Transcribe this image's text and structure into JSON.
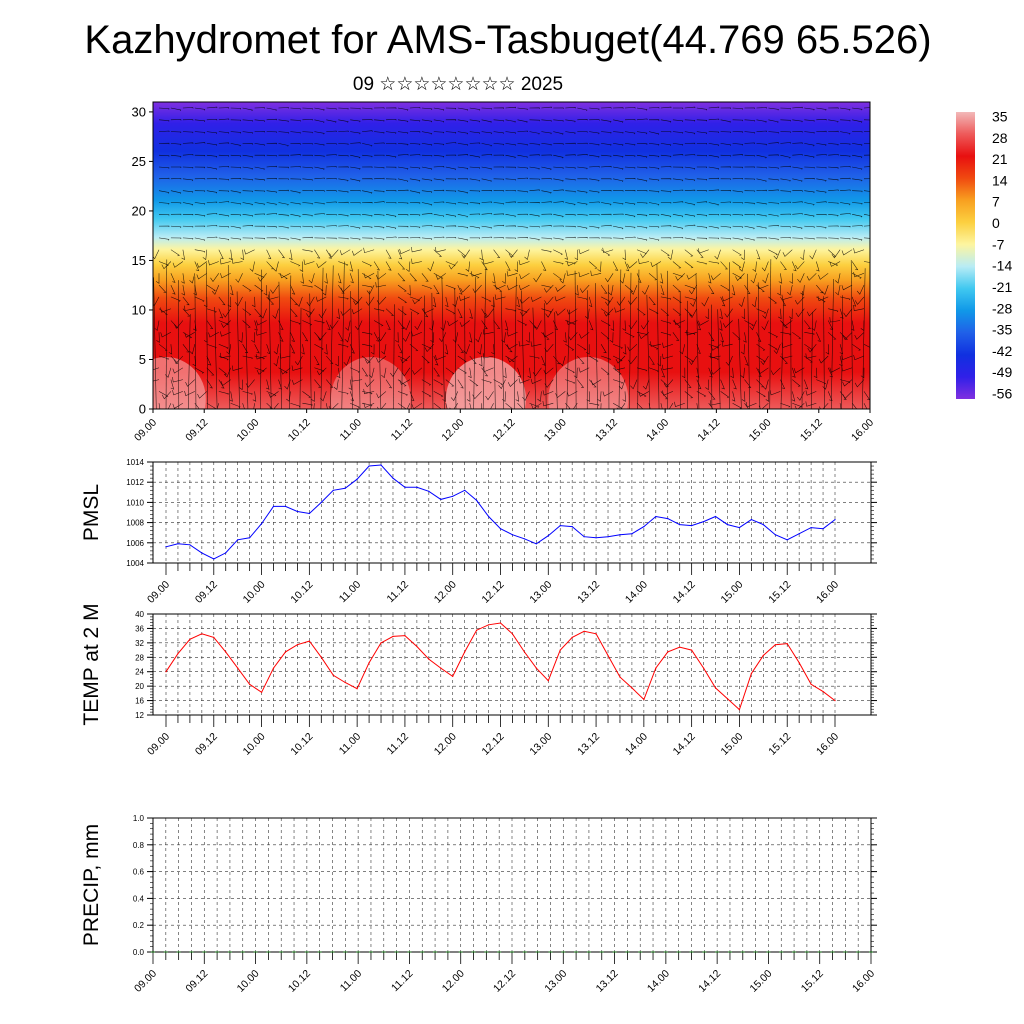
{
  "header": {
    "title": "Kazhydromet for AMS-Tasbuget(44.769 65.526)",
    "subtitle": "09 ☆☆☆☆☆☆☆☆ 2025"
  },
  "chart_data": [
    {
      "type": "heatmap",
      "title": "",
      "xlabel": "",
      "ylabel": "",
      "x_tick_labels": [
        "09.00",
        "09.12",
        "10.00",
        "10.12",
        "11.00",
        "11.12",
        "12.00",
        "12.12",
        "13.00",
        "13.12",
        "14.00",
        "14.12",
        "15.00",
        "15.12",
        "16.00"
      ],
      "y_ticks": [
        0,
        5,
        10,
        15,
        20,
        25,
        30
      ],
      "ylim": [
        0,
        31
      ],
      "colorbar_labels": [
        "35",
        "28",
        "21",
        "14",
        "7",
        "0",
        "-7",
        "-14",
        "-21",
        "-28",
        "-35",
        "-42",
        "-49",
        "-56"
      ],
      "colorbar_colors": [
        "#f2b9b9",
        "#ee5a5a",
        "#e81010",
        "#f04a10",
        "#f8a020",
        "#fcd040",
        "#fdf5a0",
        "#b8ecf5",
        "#40c8f0",
        "#1098e8",
        "#2060e8",
        "#1030e0",
        "#3020e8",
        "#8030e0"
      ],
      "wind_barbs": true
    },
    {
      "type": "line",
      "ylabel": "PMSL",
      "ylim": [
        1004,
        1014
      ],
      "y_ticks": [
        1004,
        1006,
        1008,
        1010,
        1012,
        1014
      ],
      "y_tick_labels": [
        "1004",
        "1006",
        "1008",
        "1010",
        "1012",
        "1014"
      ],
      "x_tick_labels": [
        "09.00",
        "09.12",
        "10.00",
        "10.12",
        "11.00",
        "11.12",
        "12.00",
        "12.12",
        "13.00",
        "13.12",
        "14.00",
        "14.12",
        "15.00",
        "15.12",
        "16.00"
      ],
      "series": [
        {
          "color": "#0000ff",
          "x_hours": [
            0,
            3,
            6,
            9,
            12,
            15,
            18,
            21,
            24,
            27,
            30,
            33,
            36,
            39,
            42,
            45,
            48,
            51,
            54,
            57,
            60,
            63,
            66,
            69,
            72,
            75,
            78,
            81,
            84,
            87,
            90,
            93,
            96,
            99,
            102,
            105,
            108,
            111,
            114,
            117,
            120,
            123,
            126,
            129,
            132,
            135,
            138,
            141,
            144,
            147,
            150,
            153,
            156,
            159,
            162,
            165,
            168
          ],
          "values": [
            1005.6,
            1005.9,
            1005.8,
            1005.0,
            1004.4,
            1005.0,
            1006.3,
            1006.5,
            1007.9,
            1009.6,
            1009.6,
            1009.1,
            1008.9,
            1010.0,
            1011.2,
            1011.4,
            1012.3,
            1013.6,
            1013.7,
            1012.4,
            1011.5,
            1011.5,
            1011.1,
            1010.3,
            1010.6,
            1011.2,
            1010.2,
            1008.6,
            1007.4,
            1006.8,
            1006.4,
            1005.9,
            1006.7,
            1007.7,
            1007.6,
            1006.6,
            1006.5,
            1006.6,
            1006.8,
            1006.9,
            1007.6,
            1008.6,
            1008.4,
            1007.8,
            1007.7,
            1008.1,
            1008.6,
            1007.8,
            1007.5,
            1008.3,
            1007.8,
            1006.8,
            1006.3,
            1006.9,
            1007.5,
            1007.4,
            1008.3
          ]
        }
      ]
    },
    {
      "type": "line",
      "ylabel": "TEMP at 2 M",
      "ylim": [
        12,
        40
      ],
      "y_ticks": [
        12,
        16,
        20,
        24,
        28,
        32,
        36,
        40
      ],
      "y_tick_labels": [
        "12",
        "16",
        "20",
        "24",
        "28",
        "32",
        "36",
        "40"
      ],
      "x_tick_labels": [
        "09.00",
        "09.12",
        "10.00",
        "10.12",
        "11.00",
        "11.12",
        "12.00",
        "12.12",
        "13.00",
        "13.12",
        "14.00",
        "14.12",
        "15.00",
        "15.12",
        "16.00"
      ],
      "series": [
        {
          "color": "#ff0000",
          "x_hours": [
            0,
            3,
            6,
            9,
            12,
            15,
            18,
            21,
            24,
            27,
            30,
            33,
            36,
            39,
            42,
            45,
            48,
            51,
            54,
            57,
            60,
            63,
            66,
            69,
            72,
            75,
            78,
            81,
            84,
            87,
            90,
            93,
            96,
            99,
            102,
            105,
            108,
            111,
            114,
            117,
            120,
            123,
            126,
            129,
            132,
            135,
            138,
            141,
            144,
            147,
            150,
            153,
            156,
            159,
            162,
            165,
            168
          ],
          "values": [
            24.0,
            29.0,
            33.0,
            34.5,
            33.5,
            29.5,
            25.0,
            20.5,
            18.3,
            25.0,
            29.5,
            31.5,
            32.5,
            28.0,
            23.0,
            21.0,
            19.3,
            26.5,
            32.0,
            33.8,
            34.0,
            31.0,
            27.5,
            25.0,
            22.7,
            29.5,
            35.5,
            37.0,
            37.5,
            34.5,
            29.5,
            25.0,
            21.5,
            30.0,
            33.5,
            35.2,
            34.5,
            28.5,
            22.5,
            19.5,
            16.3,
            25.0,
            29.5,
            30.8,
            30.0,
            25.0,
            19.5,
            16.5,
            13.5,
            23.5,
            28.5,
            31.5,
            31.8,
            26.5,
            20.5,
            18.5,
            16.0
          ]
        }
      ]
    },
    {
      "type": "bar",
      "ylabel": "PRECIP, mm",
      "ylim": [
        0,
        1
      ],
      "y_ticks": [
        0,
        0.2,
        0.4,
        0.6,
        0.8,
        1.0
      ],
      "y_tick_labels": [
        "0.0",
        "0.2",
        "0.4",
        "0.6",
        "0.8",
        "1.0"
      ],
      "x_tick_labels": [
        "09.00",
        "09.12",
        "10.00",
        "10.12",
        "11.00",
        "11.12",
        "12.00",
        "12.12",
        "13.00",
        "13.12",
        "14.00",
        "14.12",
        "15.00",
        "15.12",
        "16.00"
      ],
      "series": [
        {
          "color": "#006400",
          "values": [
            0,
            0,
            0,
            0,
            0,
            0,
            0,
            0,
            0,
            0,
            0,
            0,
            0,
            0,
            0,
            0,
            0,
            0,
            0,
            0,
            0,
            0,
            0,
            0,
            0,
            0,
            0,
            0,
            0,
            0,
            0,
            0,
            0,
            0,
            0,
            0,
            0,
            0,
            0,
            0,
            0,
            0,
            0,
            0,
            0,
            0,
            0,
            0,
            0,
            0,
            0,
            0,
            0,
            0,
            0,
            0,
            0
          ]
        }
      ]
    }
  ]
}
